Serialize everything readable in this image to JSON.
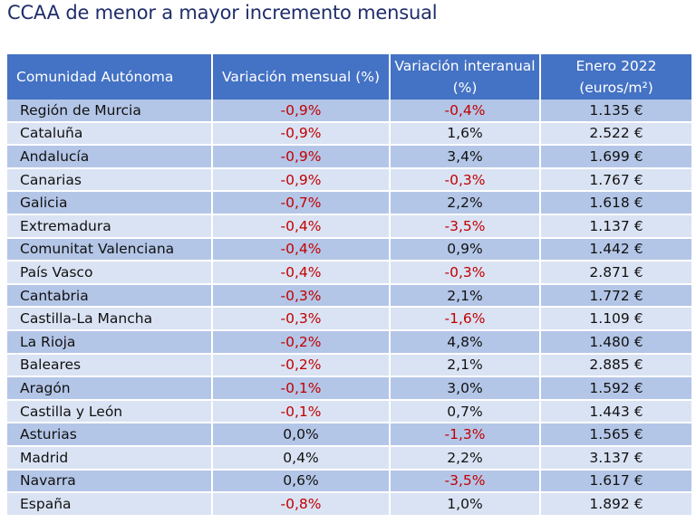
{
  "title": "CCAA de menor a mayor incremento mensual",
  "table": {
    "headers": [
      "Comunidad Autónoma",
      "Variación mensual (%)",
      "Variación interanual (%)",
      "Enero 2022 (euros/m²)"
    ],
    "rows": [
      {
        "region": "Región de Murcia",
        "mensual": "-0,9%",
        "interanual": "-0,4%",
        "precio": "1.135 €"
      },
      {
        "region": "Cataluña",
        "mensual": "-0,9%",
        "interanual": "1,6%",
        "precio": "2.522 €"
      },
      {
        "region": "Andalucía",
        "mensual": "-0,9%",
        "interanual": "3,4%",
        "precio": "1.699 €"
      },
      {
        "region": "Canarias",
        "mensual": "-0,9%",
        "interanual": "-0,3%",
        "precio": "1.767 €"
      },
      {
        "region": "Galicia",
        "mensual": "-0,7%",
        "interanual": "2,2%",
        "precio": "1.618 €"
      },
      {
        "region": "Extremadura",
        "mensual": "-0,4%",
        "interanual": "-3,5%",
        "precio": "1.137 €"
      },
      {
        "region": "Comunitat Valenciana",
        "mensual": "-0,4%",
        "interanual": "0,9%",
        "precio": "1.442 €"
      },
      {
        "region": "País Vasco",
        "mensual": "-0,4%",
        "interanual": "-0,3%",
        "precio": "2.871 €"
      },
      {
        "region": "Cantabria",
        "mensual": "-0,3%",
        "interanual": "2,1%",
        "precio": "1.772 €"
      },
      {
        "region": "Castilla-La Mancha",
        "mensual": "-0,3%",
        "interanual": "-1,6%",
        "precio": "1.109 €"
      },
      {
        "region": "La Rioja",
        "mensual": "-0,2%",
        "interanual": "4,8%",
        "precio": "1.480 €"
      },
      {
        "region": "Baleares",
        "mensual": "-0,2%",
        "interanual": "2,1%",
        "precio": "2.885 €"
      },
      {
        "region": "Aragón",
        "mensual": "-0,1%",
        "interanual": "3,0%",
        "precio": "1.592 €"
      },
      {
        "region": "Castilla y León",
        "mensual": "-0,1%",
        "interanual": "0,7%",
        "precio": "1.443 €"
      },
      {
        "region": "Asturias",
        "mensual": "0,0%",
        "interanual": "-1,3%",
        "precio": "1.565 €"
      },
      {
        "region": "Madrid",
        "mensual": "0,4%",
        "interanual": "2,2%",
        "precio": "3.137 €"
      },
      {
        "region": "Navarra",
        "mensual": "0,6%",
        "interanual": "-3,5%",
        "precio": "1.617 €"
      },
      {
        "region": "España",
        "mensual": "-0,8%",
        "interanual": "1,0%",
        "precio": "1.892 €"
      }
    ]
  },
  "colors": {
    "header_bg": "#4472c4",
    "row_dark": "#b4c6e7",
    "row_light": "#dae3f3",
    "negative_text": "#c00000",
    "title_text": "#1f2d6b"
  }
}
